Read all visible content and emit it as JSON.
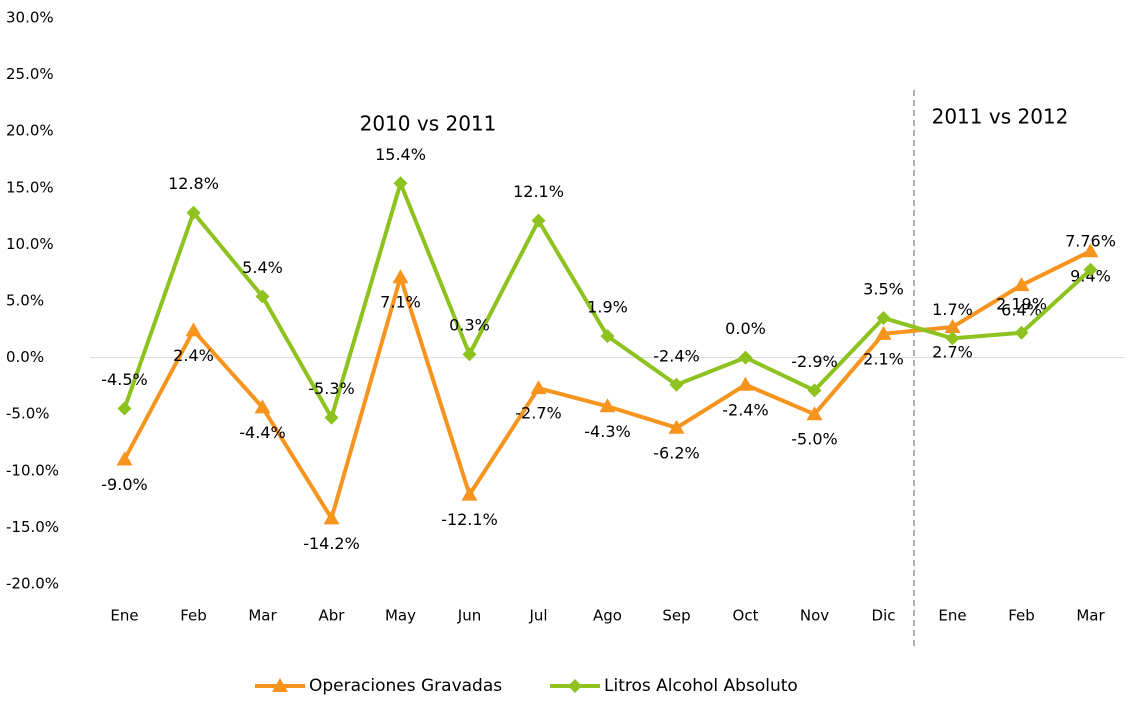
{
  "chart_data": {
    "type": "line",
    "categories": [
      "Ene",
      "Feb",
      "Mar",
      "Abr",
      "May",
      "Jun",
      "Jul",
      "Ago",
      "Sep",
      "Oct",
      "Nov",
      "Dic",
      "Ene",
      "Feb",
      "Mar"
    ],
    "annotations": [
      "2010 vs 2011",
      "2011 vs 2012"
    ],
    "series": [
      {
        "name": "Operaciones Gravadas",
        "color": "#f7941d",
        "marker": "triangle",
        "values": [
          -9.0,
          2.4,
          -4.4,
          -14.2,
          7.1,
          -12.1,
          -2.7,
          -4.3,
          -6.2,
          -2.4,
          -5.0,
          2.1,
          2.7,
          6.4,
          9.4
        ],
        "value_labels": [
          "-9.0%",
          "2.4%",
          "-4.4%",
          "-14.2%",
          "7.1%",
          "-12.1%",
          "-2.7%",
          "-4.3%",
          "-6.2%",
          "-2.4%",
          "-5.0%",
          "2.1%",
          "2.7%",
          "6.4%",
          "9.4%"
        ]
      },
      {
        "name": "Litros Alcohol Absoluto",
        "color": "#8dc21f",
        "marker": "diamond",
        "values": [
          -4.5,
          12.8,
          5.4,
          -5.3,
          15.4,
          0.3,
          12.1,
          1.9,
          -2.4,
          0.0,
          -2.9,
          3.5,
          1.7,
          2.19,
          7.76
        ],
        "value_labels": [
          "-4.5%",
          "12.8%",
          "5.4%",
          "-5.3%",
          "15.4%",
          "0.3%",
          "12.1%",
          "1.9%",
          "-2.4%",
          "0.0%",
          "-2.9%",
          "3.5%",
          "1.7%",
          "2.19%",
          "7.76%"
        ]
      }
    ],
    "ylim": [
      -20,
      30
    ],
    "yticks": [
      {
        "value": -20,
        "label": "-20.0%"
      },
      {
        "value": -15,
        "label": "-15.0%"
      },
      {
        "value": -10,
        "label": "-10.0%"
      },
      {
        "value": -5,
        "label": "-5.0%"
      },
      {
        "value": 0,
        "label": "0.0%"
      },
      {
        "value": 5,
        "label": "5.0%"
      },
      {
        "value": 10,
        "label": "10.0%"
      },
      {
        "value": 15,
        "label": "15.0%"
      },
      {
        "value": 20,
        "label": "20.0%"
      },
      {
        "value": 25,
        "label": "25.0%"
      },
      {
        "value": 30,
        "label": "30.0%"
      }
    ],
    "legend": "bottom"
  }
}
